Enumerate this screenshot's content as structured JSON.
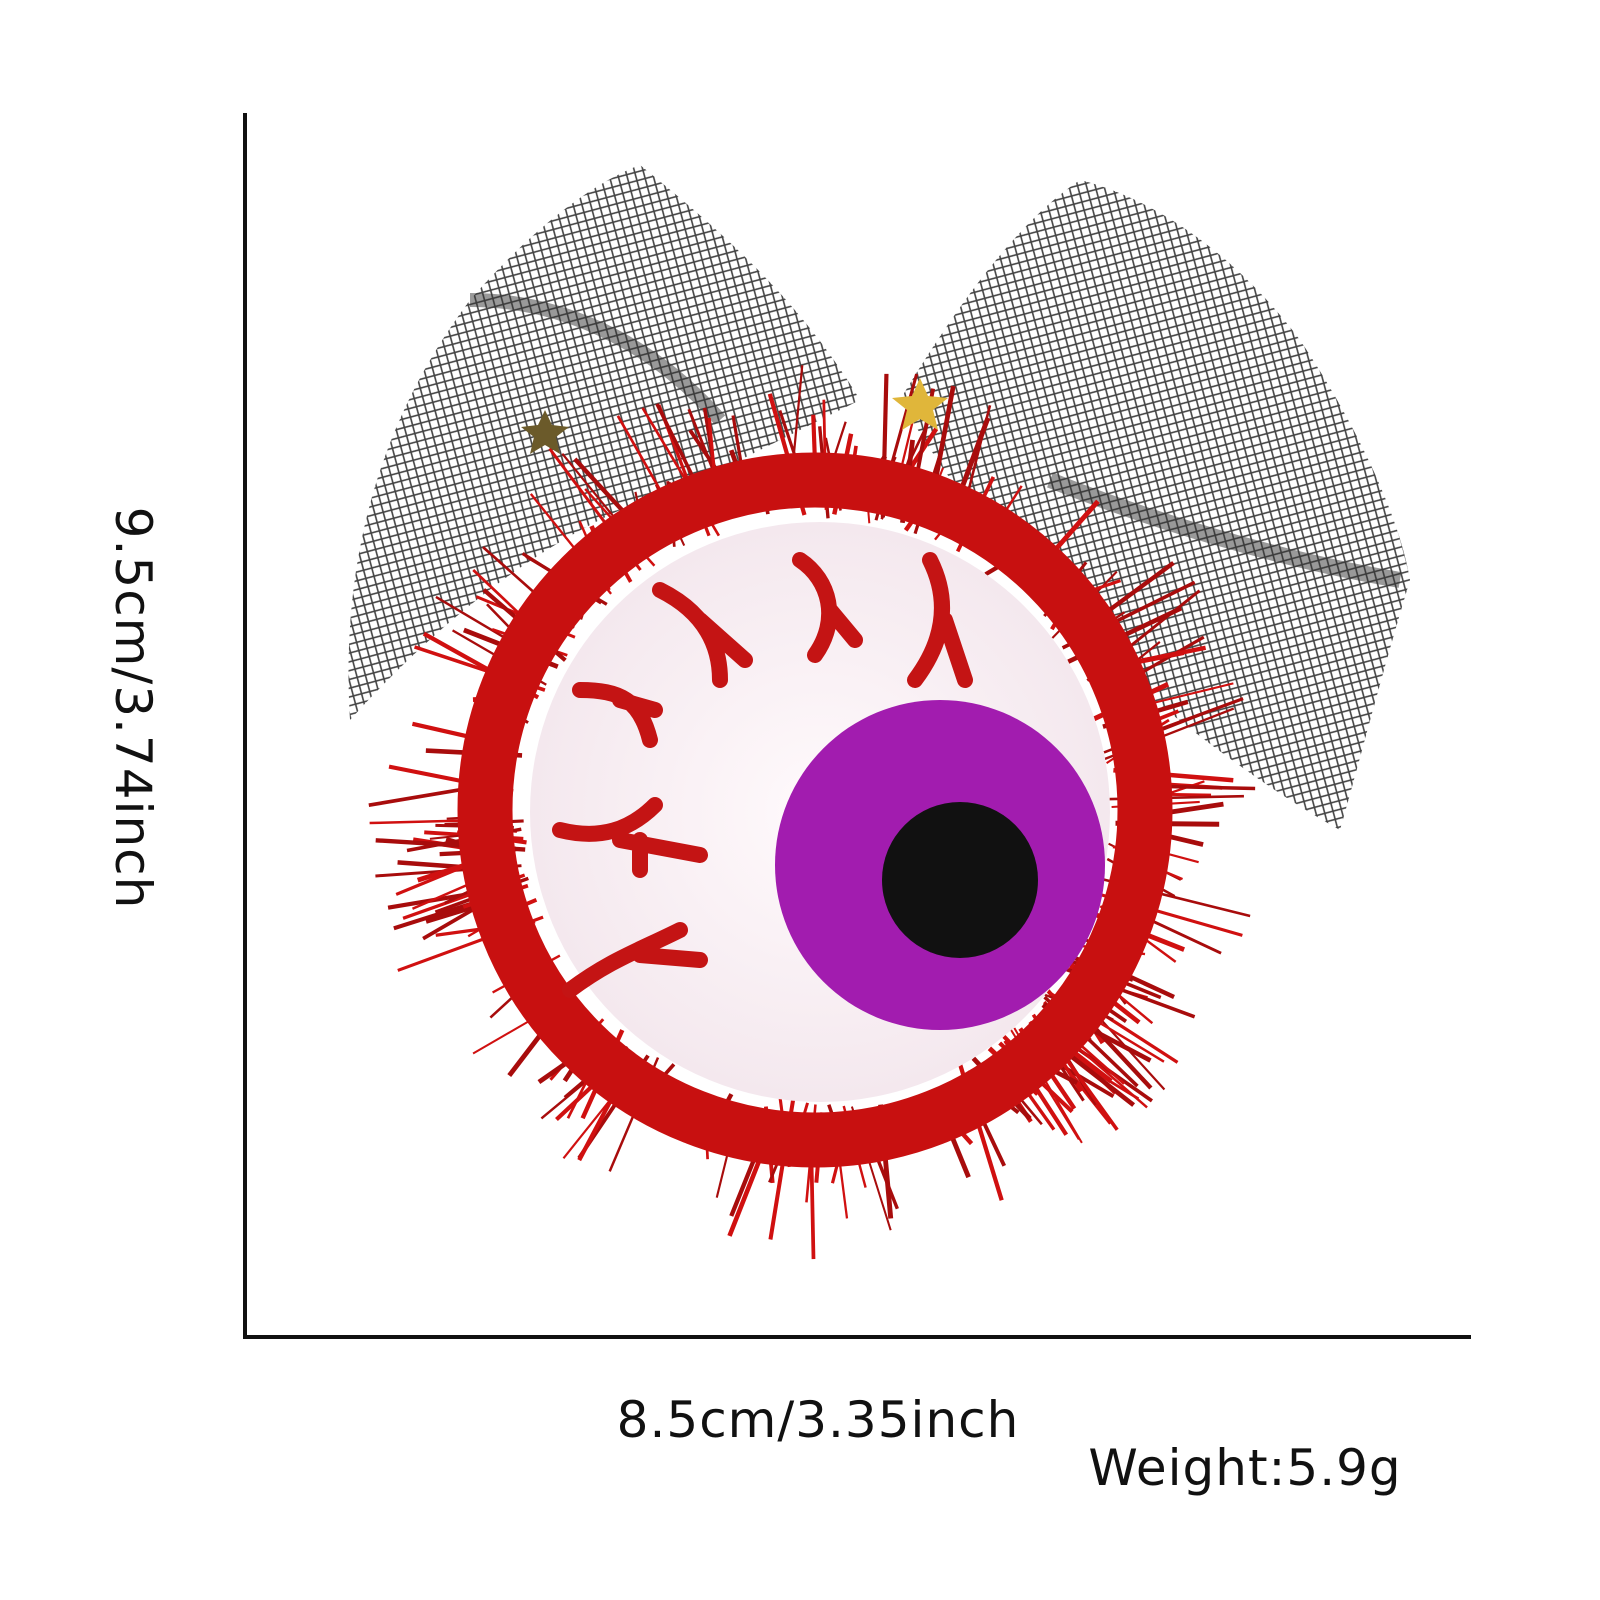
{
  "dimensions": {
    "height_label": "9.5cm/3.74inch",
    "width_label": "8.5cm/3.35inch",
    "weight_label": "Weight:5.9g"
  },
  "product": {
    "description_icon": "eyeball-hair-clip",
    "colors": {
      "tinsel": "#d01010",
      "iris": "#a21caf",
      "pupil": "#111111",
      "sclera": "#f7f1f3",
      "mesh": "#222222"
    }
  }
}
